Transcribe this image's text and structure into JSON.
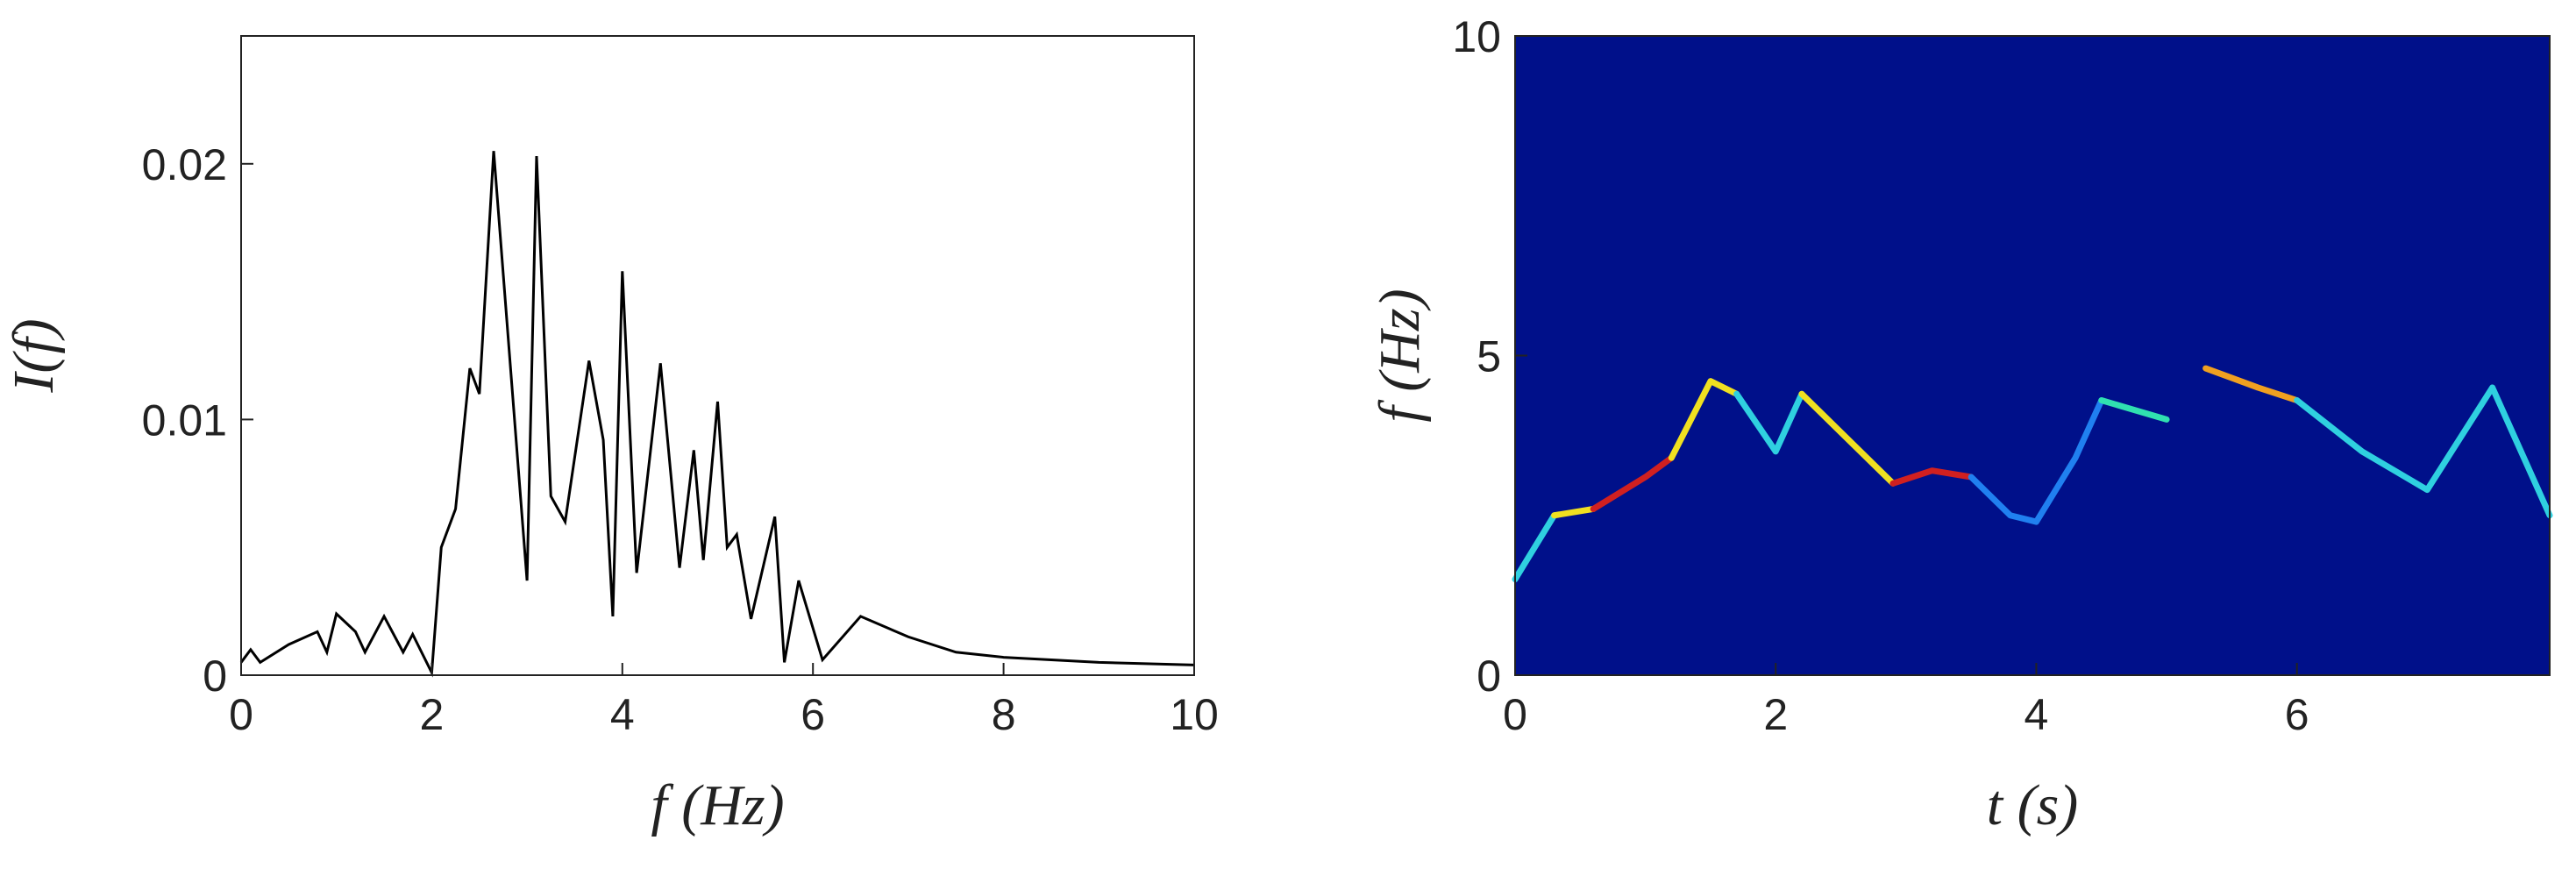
{
  "chart_data": [
    {
      "type": "line",
      "xlabel": "f (Hz)",
      "ylabel": "I(f)",
      "color": "#000000",
      "x": [
        0,
        0.1,
        0.2,
        0.5,
        0.8,
        0.9,
        1.0,
        1.2,
        1.3,
        1.5,
        1.7,
        1.8,
        2.0,
        2.1,
        2.25,
        2.4,
        2.5,
        2.65,
        3.0,
        3.1,
        3.25,
        3.4,
        3.65,
        3.8,
        3.9,
        4.0,
        4.15,
        4.4,
        4.6,
        4.75,
        4.85,
        5.0,
        5.1,
        5.2,
        5.35,
        5.6,
        5.7,
        5.85,
        6.1,
        6.5,
        7.0,
        7.5,
        8.0,
        9.0,
        10
      ],
      "values": [
        0.0005,
        0.001,
        0.0005,
        0.0012,
        0.0017,
        0.0009,
        0.0024,
        0.0017,
        0.0009,
        0.0023,
        0.0009,
        0.0016,
        0.0001,
        0.005,
        0.0065,
        0.012,
        0.011,
        0.0205,
        0.0037,
        0.0203,
        0.007,
        0.006,
        0.0123,
        0.0092,
        0.0023,
        0.0158,
        0.004,
        0.0122,
        0.0042,
        0.0088,
        0.0045,
        0.0107,
        0.005,
        0.0055,
        0.0022,
        0.0062,
        0.0005,
        0.0037,
        0.0006,
        0.0023,
        0.0015,
        0.0009,
        0.0007,
        0.0005,
        0.0004
      ],
      "xlim": [
        0,
        10
      ],
      "xticks": [
        0,
        2,
        4,
        6,
        8,
        10
      ],
      "ylim": [
        0,
        0.025
      ],
      "yticks": [
        0,
        0.01,
        0.02
      ]
    },
    {
      "type": "spectrogram",
      "xlabel": "t (s)",
      "ylabel": "f (Hz)",
      "background": "#00108a",
      "series": [
        {
          "color": "#2fd0e0",
          "x": [
            0,
            0.3
          ],
          "values": [
            1.5,
            2.5
          ]
        },
        {
          "color": "#f0e020",
          "x": [
            0.3,
            0.6
          ],
          "values": [
            2.5,
            2.6
          ]
        },
        {
          "color": "#d02020",
          "x": [
            0.6,
            1.0,
            1.2
          ],
          "values": [
            2.6,
            3.1,
            3.4
          ]
        },
        {
          "color": "#f0e020",
          "x": [
            1.2,
            1.5,
            1.7
          ],
          "values": [
            3.4,
            4.6,
            4.4
          ]
        },
        {
          "color": "#2fd0e0",
          "x": [
            1.7,
            2.0,
            2.2
          ],
          "values": [
            4.4,
            3.5,
            4.4
          ]
        },
        {
          "color": "#f0e020",
          "x": [
            2.2,
            2.5,
            2.9
          ],
          "values": [
            4.4,
            3.8,
            3.0
          ]
        },
        {
          "color": "#d02020",
          "x": [
            2.9,
            3.2,
            3.5
          ],
          "values": [
            3.0,
            3.2,
            3.1
          ]
        },
        {
          "color": "#2080f0",
          "x": [
            3.5,
            3.8,
            4.0,
            4.3,
            4.5
          ],
          "values": [
            3.1,
            2.5,
            2.4,
            3.4,
            4.3
          ]
        },
        {
          "color": "#30e0b0",
          "x": [
            4.5,
            5.0
          ],
          "values": [
            4.3,
            4.0
          ]
        },
        {
          "color": "#f0a020",
          "x": [
            5.3,
            5.7,
            6.0
          ],
          "values": [
            4.8,
            4.5,
            4.3
          ]
        },
        {
          "color": "#2fd0e0",
          "x": [
            6.0,
            6.5,
            7.0,
            7.5,
            7.94
          ],
          "values": [
            4.3,
            3.5,
            2.9,
            4.5,
            2.5
          ]
        }
      ],
      "xlim": [
        0,
        7.94
      ],
      "xticks": [
        0,
        2,
        4,
        6
      ],
      "ylim": [
        0,
        10
      ],
      "yticks": [
        0,
        5,
        10
      ]
    }
  ]
}
